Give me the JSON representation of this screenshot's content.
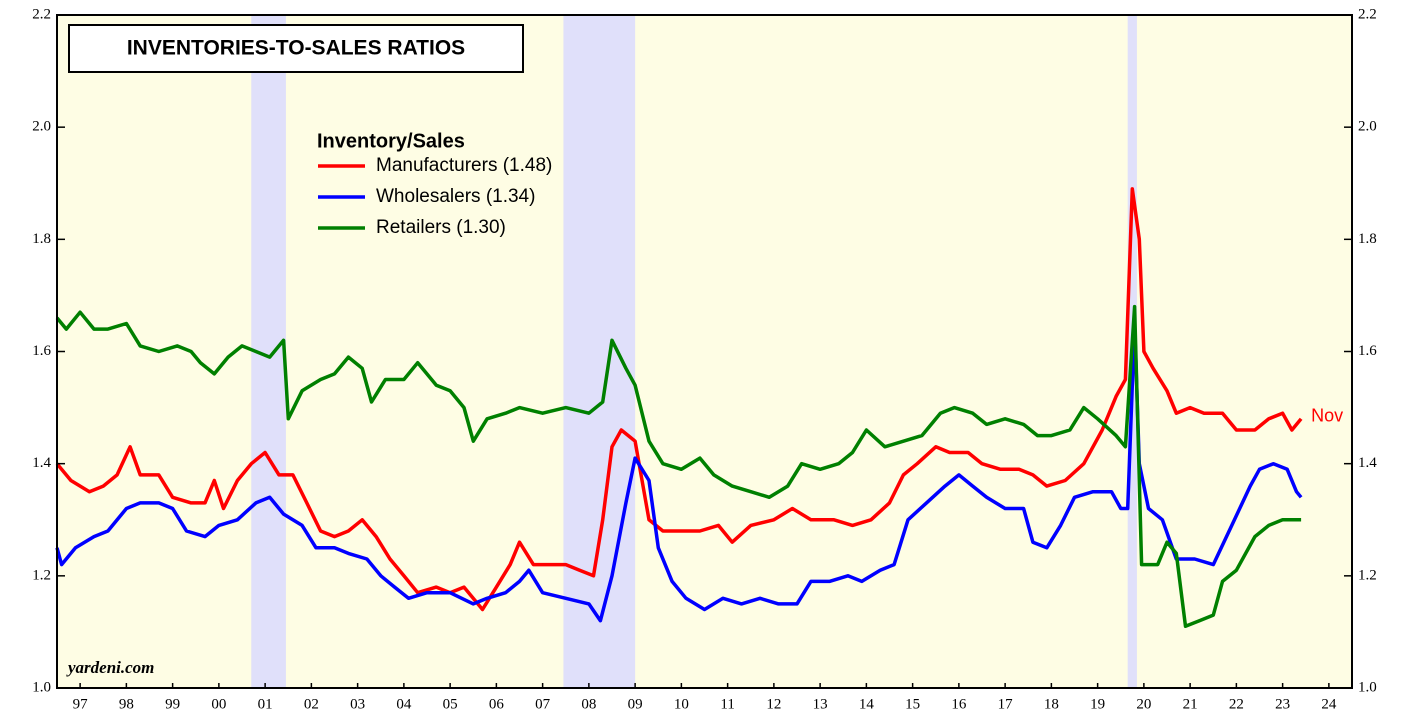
{
  "chart_data": {
    "type": "line",
    "title": "INVENTORIES-TO-SALES RATIOS",
    "legend_title": "Inventory/Sales",
    "end_label": "Nov",
    "source": "yardeni.com",
    "xlim": [
      1997,
      2025
    ],
    "ylim": [
      1.0,
      2.2
    ],
    "yticks": [
      {
        "value": 1.0,
        "label": "1.0"
      },
      {
        "value": 1.2,
        "label": "1.2"
      },
      {
        "value": 1.4,
        "label": "1.4"
      },
      {
        "value": 1.6,
        "label": "1.6"
      },
      {
        "value": 1.8,
        "label": "1.8"
      },
      {
        "value": 2.0,
        "label": "2.0"
      },
      {
        "value": 2.2,
        "label": "2.2"
      }
    ],
    "xticks": [
      {
        "value": 1997.5,
        "label": "97"
      },
      {
        "value": 1998.5,
        "label": "98"
      },
      {
        "value": 1999.5,
        "label": "99"
      },
      {
        "value": 2000.5,
        "label": "00"
      },
      {
        "value": 2001.5,
        "label": "01"
      },
      {
        "value": 2002.5,
        "label": "02"
      },
      {
        "value": 2003.5,
        "label": "03"
      },
      {
        "value": 2004.5,
        "label": "04"
      },
      {
        "value": 2005.5,
        "label": "05"
      },
      {
        "value": 2006.5,
        "label": "06"
      },
      {
        "value": 2007.5,
        "label": "07"
      },
      {
        "value": 2008.5,
        "label": "08"
      },
      {
        "value": 2009.5,
        "label": "09"
      },
      {
        "value": 2010.5,
        "label": "10"
      },
      {
        "value": 2011.5,
        "label": "11"
      },
      {
        "value": 2012.5,
        "label": "12"
      },
      {
        "value": 2013.5,
        "label": "13"
      },
      {
        "value": 2014.5,
        "label": "14"
      },
      {
        "value": 2015.5,
        "label": "15"
      },
      {
        "value": 2016.5,
        "label": "16"
      },
      {
        "value": 2017.5,
        "label": "17"
      },
      {
        "value": 2018.5,
        "label": "18"
      },
      {
        "value": 2019.5,
        "label": "19"
      },
      {
        "value": 2020.5,
        "label": "20"
      },
      {
        "value": 2021.5,
        "label": "21"
      },
      {
        "value": 2022.5,
        "label": "22"
      },
      {
        "value": 2023.5,
        "label": "23"
      },
      {
        "value": 2024.5,
        "label": "24"
      }
    ],
    "recessions": [
      [
        2001.2,
        2001.95
      ],
      [
        2007.95,
        2009.5
      ],
      [
        2020.15,
        2020.35
      ]
    ],
    "series": [
      {
        "name": "Manufacturers (1.48)",
        "color": "#ff0000",
        "x": [
          1997.0,
          1997.3,
          1997.7,
          1998.0,
          1998.3,
          1998.58,
          1998.8,
          1999.2,
          1999.5,
          1999.9,
          2000.2,
          2000.4,
          2000.6,
          2000.9,
          2001.2,
          2001.5,
          2001.8,
          2002.1,
          2002.4,
          2002.7,
          2003.0,
          2003.3,
          2003.6,
          2003.9,
          2004.2,
          2004.5,
          2004.8,
          2005.2,
          2005.5,
          2005.8,
          2006.2,
          2006.5,
          2006.8,
          2007.0,
          2007.3,
          2007.7,
          2008.0,
          2008.3,
          2008.6,
          2008.8,
          2009.0,
          2009.2,
          2009.5,
          2009.8,
          2010.1,
          2010.5,
          2010.9,
          2011.3,
          2011.6,
          2012.0,
          2012.5,
          2012.9,
          2013.3,
          2013.8,
          2014.2,
          2014.6,
          2015.0,
          2015.3,
          2015.6,
          2016.0,
          2016.3,
          2016.7,
          2017.0,
          2017.4,
          2017.8,
          2018.1,
          2018.4,
          2018.8,
          2019.2,
          2019.6,
          2019.9,
          2020.1,
          2020.25,
          2020.4,
          2020.5,
          2020.7,
          2021.0,
          2021.2,
          2021.5,
          2021.8,
          2022.2,
          2022.5,
          2022.9,
          2023.2,
          2023.5,
          2023.7,
          2023.9
        ],
        "values": [
          1.4,
          1.37,
          1.35,
          1.36,
          1.38,
          1.43,
          1.38,
          1.38,
          1.34,
          1.33,
          1.33,
          1.37,
          1.32,
          1.37,
          1.4,
          1.42,
          1.38,
          1.38,
          1.33,
          1.28,
          1.27,
          1.28,
          1.3,
          1.27,
          1.23,
          1.2,
          1.17,
          1.18,
          1.17,
          1.18,
          1.14,
          1.18,
          1.22,
          1.26,
          1.22,
          1.22,
          1.22,
          1.21,
          1.2,
          1.3,
          1.43,
          1.46,
          1.44,
          1.3,
          1.28,
          1.28,
          1.28,
          1.29,
          1.26,
          1.29,
          1.3,
          1.32,
          1.3,
          1.3,
          1.29,
          1.3,
          1.33,
          1.38,
          1.4,
          1.43,
          1.42,
          1.42,
          1.4,
          1.39,
          1.39,
          1.38,
          1.36,
          1.37,
          1.4,
          1.46,
          1.52,
          1.55,
          1.89,
          1.8,
          1.6,
          1.57,
          1.53,
          1.49,
          1.5,
          1.49,
          1.49,
          1.46,
          1.46,
          1.48,
          1.49,
          1.46,
          1.48
        ]
      },
      {
        "name": "Wholesalers (1.34)",
        "color": "#0000ff",
        "x": [
          1997.0,
          1997.1,
          1997.4,
          1997.8,
          1998.1,
          1998.5,
          1998.8,
          1999.2,
          1999.5,
          1999.8,
          2000.2,
          2000.5,
          2000.9,
          2001.3,
          2001.6,
          2001.9,
          2002.3,
          2002.6,
          2003.0,
          2003.3,
          2003.7,
          2004.0,
          2004.3,
          2004.6,
          2005.0,
          2005.5,
          2006.0,
          2006.3,
          2006.7,
          2007.0,
          2007.2,
          2007.5,
          2008.0,
          2008.5,
          2008.75,
          2009.0,
          2009.3,
          2009.5,
          2009.8,
          2010.0,
          2010.3,
          2010.6,
          2011.0,
          2011.4,
          2011.8,
          2012.2,
          2012.6,
          2013.0,
          2013.3,
          2013.7,
          2014.1,
          2014.4,
          2014.8,
          2015.1,
          2015.4,
          2015.8,
          2016.2,
          2016.5,
          2016.8,
          2017.1,
          2017.5,
          2017.9,
          2018.1,
          2018.4,
          2018.7,
          2019.0,
          2019.4,
          2019.8,
          2020.0,
          2020.15,
          2020.3,
          2020.4,
          2020.6,
          2020.9,
          2021.2,
          2021.6,
          2022.0,
          2022.4,
          2022.8,
          2023.0,
          2023.3,
          2023.6,
          2023.8,
          2023.9
        ],
        "values": [
          1.25,
          1.22,
          1.25,
          1.27,
          1.28,
          1.32,
          1.33,
          1.33,
          1.32,
          1.28,
          1.27,
          1.29,
          1.3,
          1.33,
          1.34,
          1.31,
          1.29,
          1.25,
          1.25,
          1.24,
          1.23,
          1.2,
          1.18,
          1.16,
          1.17,
          1.17,
          1.15,
          1.16,
          1.17,
          1.19,
          1.21,
          1.17,
          1.16,
          1.15,
          1.12,
          1.2,
          1.33,
          1.41,
          1.37,
          1.25,
          1.19,
          1.16,
          1.14,
          1.16,
          1.15,
          1.16,
          1.15,
          1.15,
          1.19,
          1.19,
          1.2,
          1.19,
          1.21,
          1.22,
          1.3,
          1.33,
          1.36,
          1.38,
          1.36,
          1.34,
          1.32,
          1.32,
          1.26,
          1.25,
          1.29,
          1.34,
          1.35,
          1.35,
          1.32,
          1.32,
          1.65,
          1.4,
          1.32,
          1.3,
          1.23,
          1.23,
          1.22,
          1.29,
          1.36,
          1.39,
          1.4,
          1.39,
          1.35,
          1.34
        ]
      },
      {
        "name": "Retailers (1.30)",
        "color": "#008000",
        "x": [
          1997.0,
          1997.2,
          1997.5,
          1997.8,
          1998.1,
          1998.5,
          1998.8,
          1999.2,
          1999.6,
          1999.9,
          2000.1,
          2000.4,
          2000.7,
          2001.0,
          2001.3,
          2001.6,
          2001.9,
          2002.0,
          2002.3,
          2002.7,
          2003.0,
          2003.3,
          2003.6,
          2003.8,
          2004.1,
          2004.5,
          2004.8,
          2005.2,
          2005.5,
          2005.8,
          2006.0,
          2006.3,
          2006.7,
          2007.0,
          2007.5,
          2008.0,
          2008.5,
          2008.8,
          2009.0,
          2009.3,
          2009.5,
          2009.8,
          2010.1,
          2010.5,
          2010.9,
          2011.2,
          2011.6,
          2012.0,
          2012.4,
          2012.8,
          2013.1,
          2013.5,
          2013.9,
          2014.2,
          2014.5,
          2014.9,
          2015.3,
          2015.7,
          2016.1,
          2016.4,
          2016.8,
          2017.1,
          2017.5,
          2017.9,
          2018.2,
          2018.5,
          2018.9,
          2019.2,
          2019.5,
          2019.9,
          2020.1,
          2020.3,
          2020.45,
          2020.8,
          2021.0,
          2021.2,
          2021.4,
          2021.7,
          2022.0,
          2022.2,
          2022.5,
          2022.9,
          2023.2,
          2023.5,
          2023.9
        ],
        "values": [
          1.66,
          1.64,
          1.67,
          1.64,
          1.64,
          1.65,
          1.61,
          1.6,
          1.61,
          1.6,
          1.58,
          1.56,
          1.59,
          1.61,
          1.6,
          1.59,
          1.62,
          1.48,
          1.53,
          1.55,
          1.56,
          1.59,
          1.57,
          1.51,
          1.55,
          1.55,
          1.58,
          1.54,
          1.53,
          1.5,
          1.44,
          1.48,
          1.49,
          1.5,
          1.49,
          1.5,
          1.49,
          1.51,
          1.62,
          1.57,
          1.54,
          1.44,
          1.4,
          1.39,
          1.41,
          1.38,
          1.36,
          1.35,
          1.34,
          1.36,
          1.4,
          1.39,
          1.4,
          1.42,
          1.46,
          1.43,
          1.44,
          1.45,
          1.49,
          1.5,
          1.49,
          1.47,
          1.48,
          1.47,
          1.45,
          1.45,
          1.46,
          1.5,
          1.48,
          1.45,
          1.43,
          1.68,
          1.22,
          1.22,
          1.26,
          1.24,
          1.11,
          1.12,
          1.13,
          1.19,
          1.21,
          1.27,
          1.29,
          1.3,
          1.3
        ]
      }
    ]
  }
}
